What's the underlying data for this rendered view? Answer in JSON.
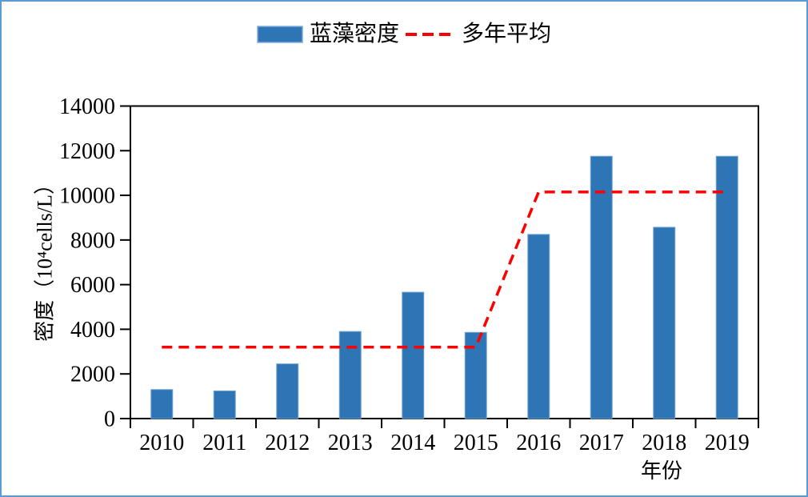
{
  "frame": {
    "border_color": "#5B9BD5",
    "background_color": "#FFFFFF"
  },
  "chart_data": {
    "type": "bar",
    "title": "",
    "categories": [
      "2010",
      "2011",
      "2012",
      "2013",
      "2014",
      "2015",
      "2016",
      "2017",
      "2018",
      "2019"
    ],
    "series": [
      {
        "name": "蓝藻密度",
        "type": "bar",
        "color": "#2E75B6",
        "values": [
          1300,
          1240,
          2450,
          3900,
          5660,
          3860,
          8250,
          11750,
          8570,
          11750
        ]
      },
      {
        "name": "多年平均",
        "type": "line",
        "line_style": "dashed",
        "color": "#FF0000",
        "values": [
          3200,
          3200,
          3200,
          3200,
          3200,
          3200,
          10150,
          10150,
          10150,
          10150
        ]
      }
    ],
    "xlabel": "年份",
    "ylabel": "密度（10⁴cells/L）",
    "ylim": [
      0,
      14000
    ],
    "yticks": [
      0,
      2000,
      4000,
      6000,
      8000,
      10000,
      12000,
      14000
    ],
    "grid": false,
    "legend_position": "top-center",
    "axis_color": "#000000"
  }
}
